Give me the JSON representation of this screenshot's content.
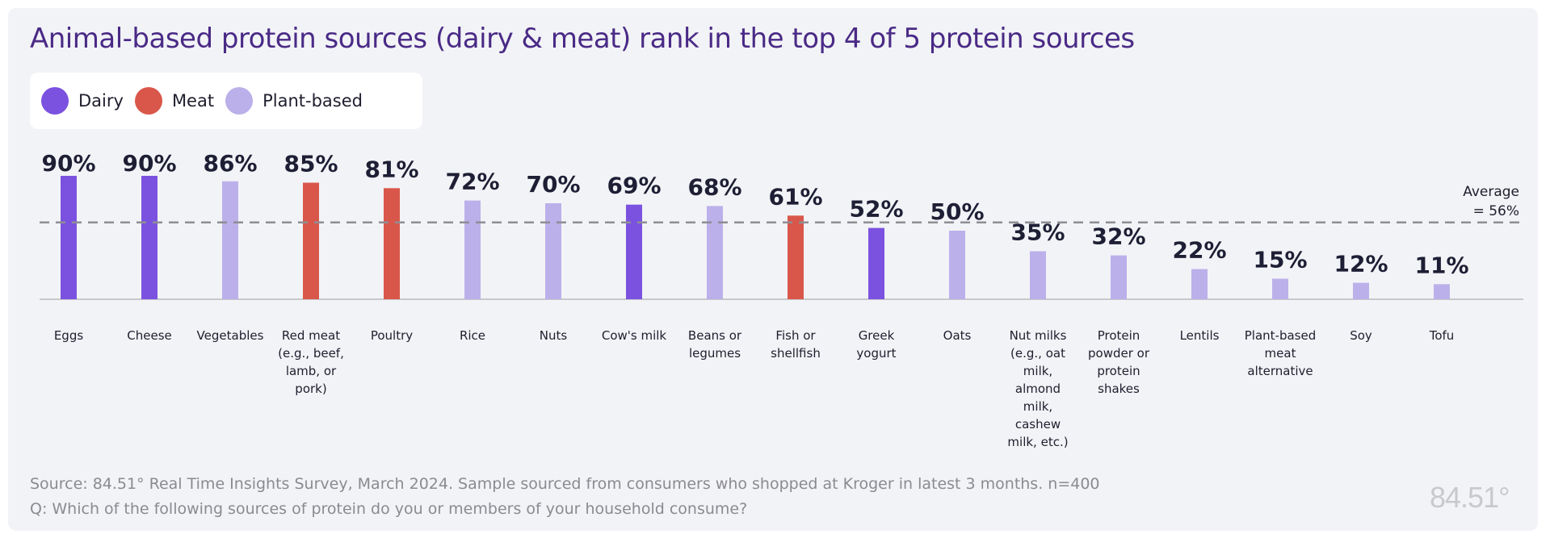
{
  "title": "Animal-based protein sources (dairy & meat) rank in the top 4 of 5 protein sources",
  "legend": [
    {
      "label": "Dairy",
      "color": "#7b52e0"
    },
    {
      "label": "Meat",
      "color": "#d9574a"
    },
    {
      "label": "Plant-based",
      "color": "#bcb0ea"
    }
  ],
  "chart_data": {
    "type": "bar",
    "categories": [
      "Eggs",
      "Cheese",
      "Vegetables",
      "Red meat (e.g., beef, lamb, or pork)",
      "Poultry",
      "Rice",
      "Nuts",
      "Cow's milk",
      "Beans or legumes",
      "Fish or shellfish",
      "Greek yogurt",
      "Oats",
      "Nut  milks (e.g., oat milk, almond milk, cashew milk, etc.)",
      "Protein powder or protein shakes",
      "Lentils",
      "Plant-based meat alternative",
      "Soy",
      "Tofu"
    ],
    "values": [
      90,
      90,
      86,
      85,
      81,
      72,
      70,
      69,
      68,
      61,
      52,
      50,
      35,
      32,
      22,
      15,
      12,
      11
    ],
    "value_labels": [
      "90%",
      "90%",
      "86%",
      "85%",
      "81%",
      "72%",
      "70%",
      "69%",
      "68%",
      "61%",
      "52%",
      "50%",
      "35%",
      "32%",
      "22%",
      "15%",
      "12%",
      "11%"
    ],
    "groups": [
      "Dairy",
      "Dairy",
      "Plant-based",
      "Meat",
      "Meat",
      "Plant-based",
      "Plant-based",
      "Dairy",
      "Plant-based",
      "Meat",
      "Dairy",
      "Plant-based",
      "Plant-based",
      "Plant-based",
      "Plant-based",
      "Plant-based",
      "Plant-based",
      "Plant-based"
    ],
    "average": 56,
    "average_label_line1": "Average",
    "average_label_line2": "= 56%",
    "ylim": [
      0,
      100
    ],
    "grid": false,
    "legend_position": "top-left"
  },
  "source": "Source:  84.51° Real Time Insights Survey, March 2024. Sample sourced from consumers who shopped at Kroger in latest 3 months. n=400",
  "question": "Q: Which of the following sources of protein do you or members of your household consume?",
  "logo": "84.51°"
}
